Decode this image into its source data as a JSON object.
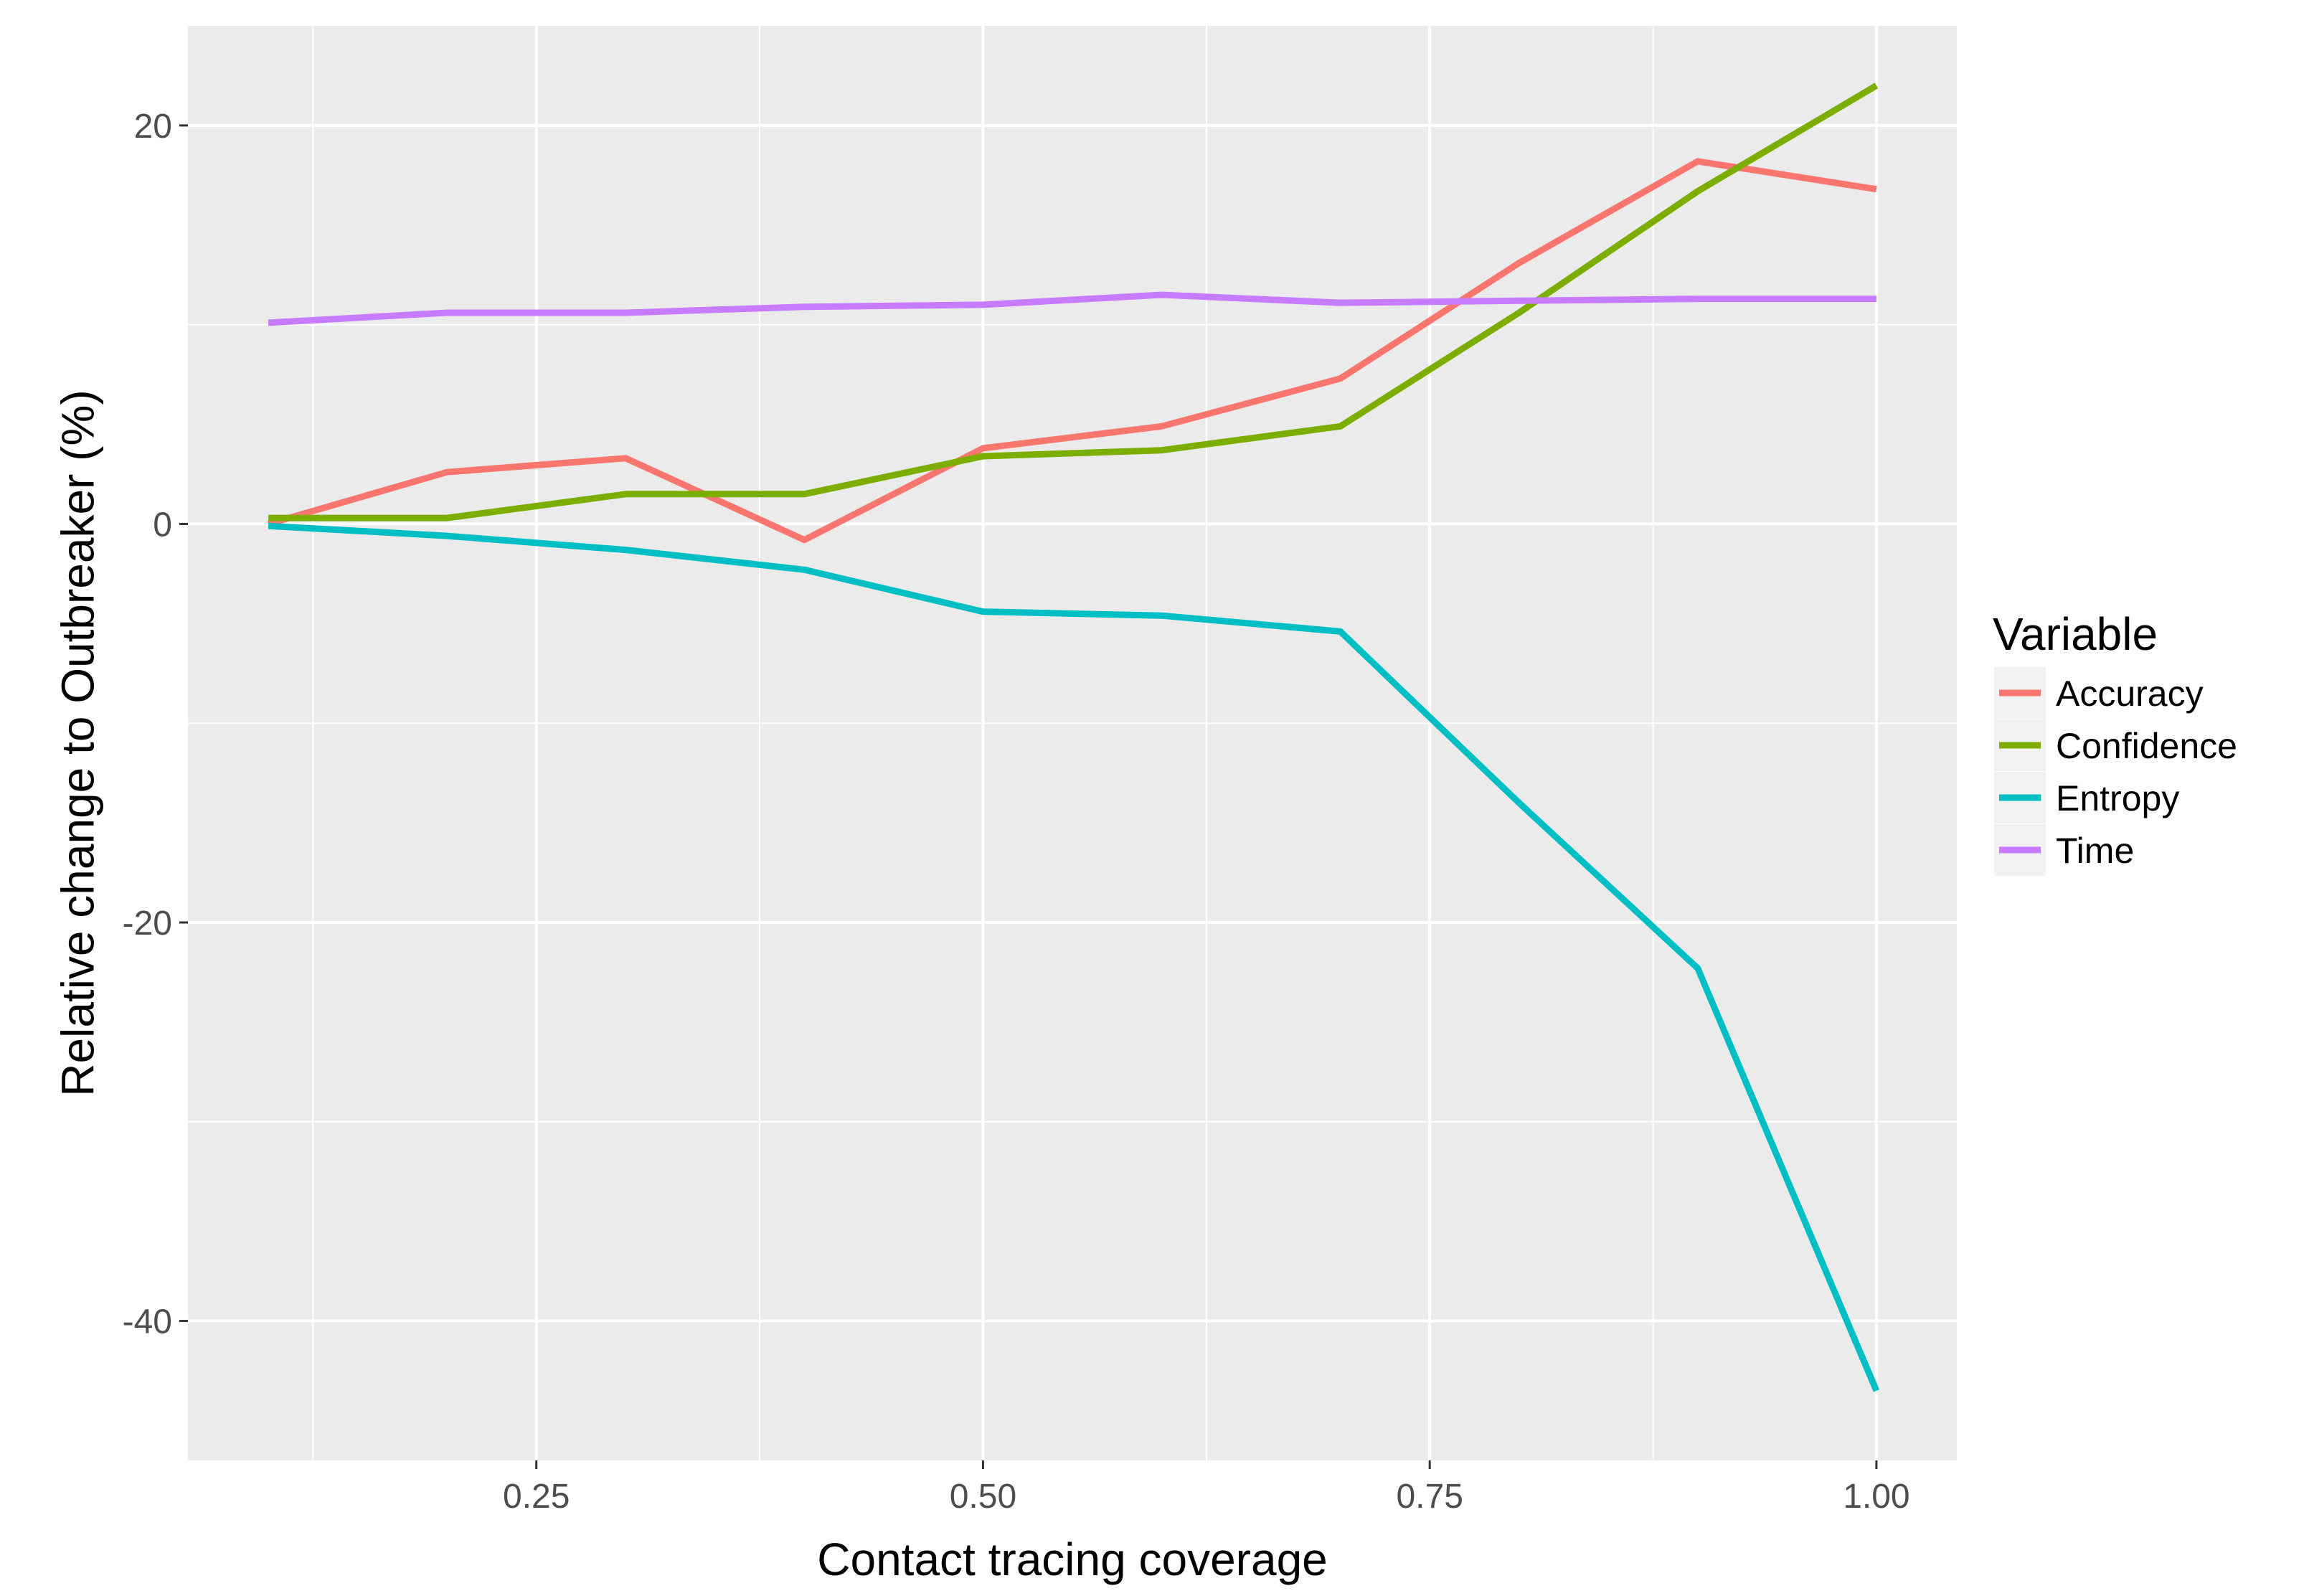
{
  "chart_data": {
    "type": "line",
    "title": "",
    "xlabel": "Contact tracing coverage",
    "ylabel": "Relative change to Outbreaker (%)",
    "xlim": [
      0.055,
      1.045
    ],
    "ylim": [
      -47,
      25
    ],
    "x_ticks": [
      0.25,
      0.5,
      0.75,
      1.0
    ],
    "x_tick_labels": [
      "0.25",
      "0.50",
      "0.75",
      "1.00"
    ],
    "y_ticks": [
      -40,
      -20,
      0,
      20
    ],
    "y_tick_labels": [
      "-40",
      "-20",
      "0",
      "20"
    ],
    "grid": true,
    "legend": {
      "title": "Variable",
      "position": "right"
    },
    "x": [
      0.1,
      0.2,
      0.3,
      0.4,
      0.5,
      0.6,
      0.7,
      0.8,
      0.9,
      1.0
    ],
    "series": [
      {
        "name": "Accuracy",
        "color": "#F8766D",
        "values": [
          0.0,
          2.6,
          3.3,
          -0.8,
          3.8,
          4.9,
          7.3,
          13.1,
          18.2,
          16.8
        ]
      },
      {
        "name": "Confidence",
        "color": "#7CAE00",
        "values": [
          0.3,
          0.3,
          1.5,
          1.5,
          3.4,
          3.7,
          4.9,
          10.6,
          16.7,
          22.0
        ]
      },
      {
        "name": "Entropy",
        "color": "#00BFC4",
        "values": [
          -0.1,
          -0.6,
          -1.3,
          -2.3,
          -4.4,
          -4.6,
          -5.4,
          -14.0,
          -22.3,
          -43.5
        ]
      },
      {
        "name": "Time",
        "color": "#C77CFF",
        "values": [
          10.1,
          10.6,
          10.6,
          10.9,
          11.0,
          11.5,
          11.1,
          11.2,
          11.3,
          11.3
        ]
      }
    ]
  }
}
